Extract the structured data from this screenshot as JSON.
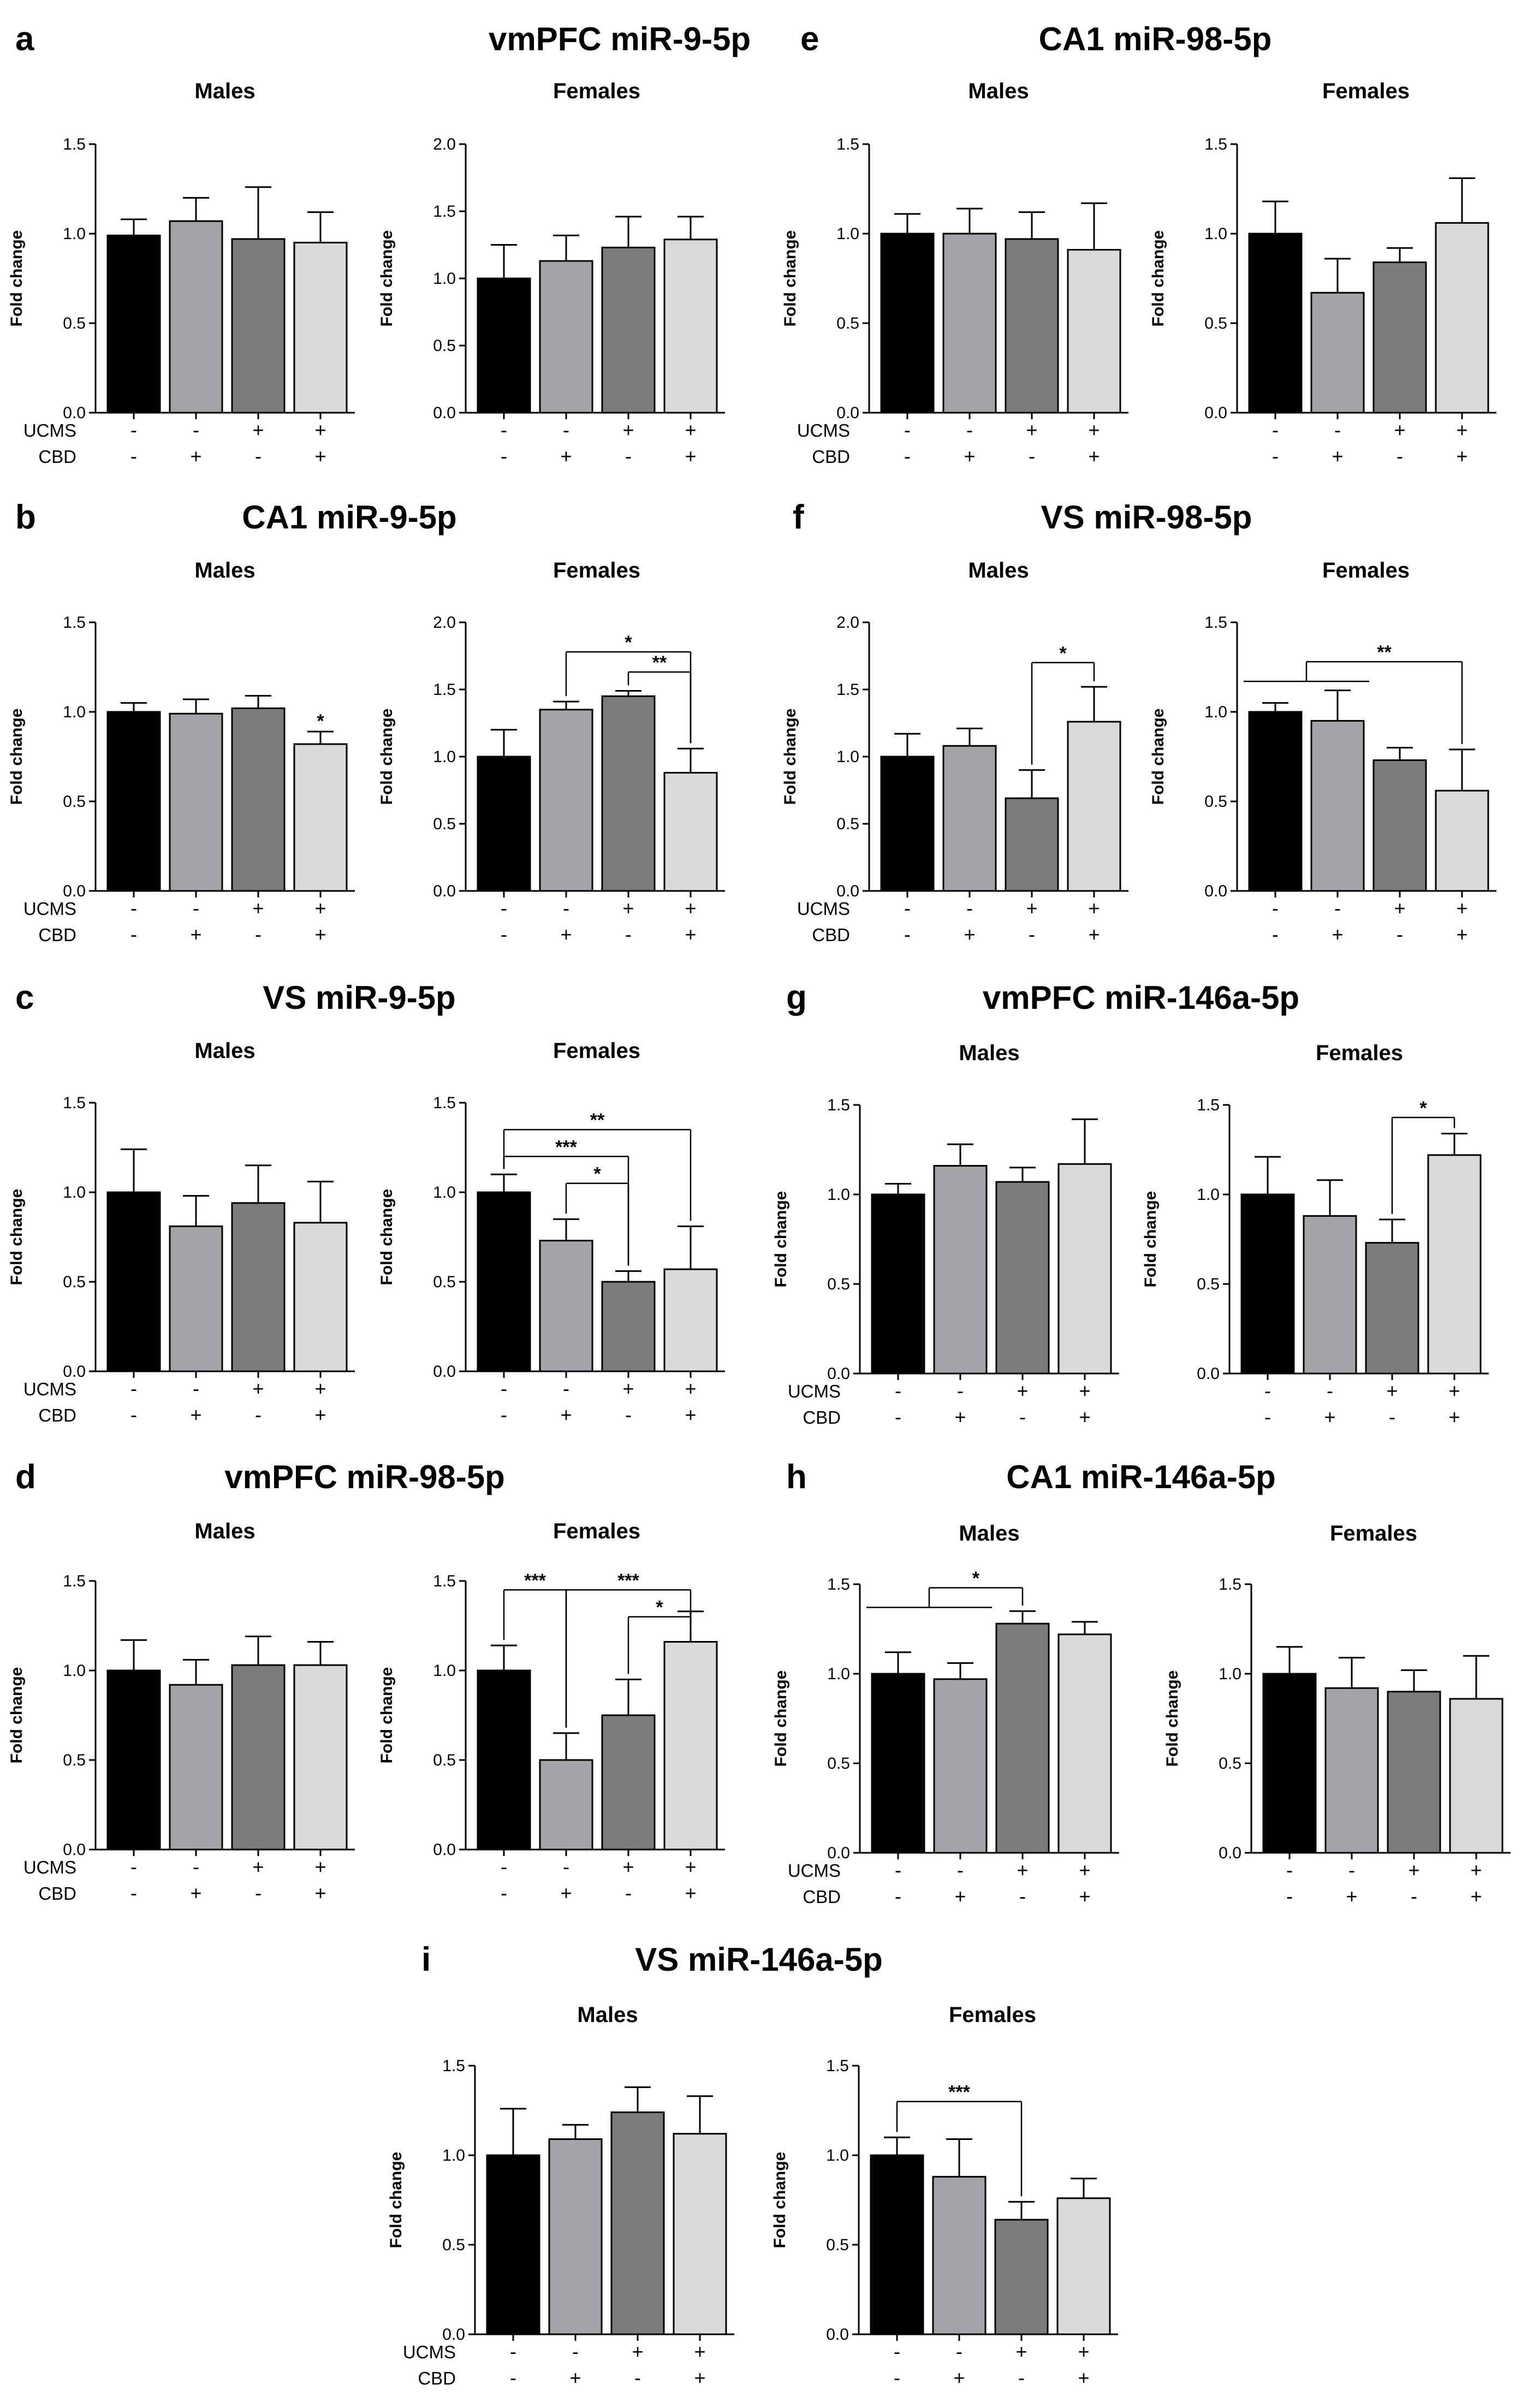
{
  "colors": [
    "#000000",
    "#a3a3a8",
    "#7c7c7c",
    "#d9d9d9"
  ],
  "row_labels": [
    "UCMS",
    "CBD"
  ],
  "y_axis_label": "Fold change",
  "chart_data": [
    {
      "letter": "a",
      "title": "vmPFC miR-9-5p",
      "type": "bar",
      "ylabel": "Fold change",
      "subplots": [
        {
          "title": "Males",
          "ylim": [
            0,
            1.5
          ],
          "ticks": [
            "0.0",
            "0.5",
            "1.0",
            "1.5"
          ],
          "values": [
            0.99,
            1.07,
            0.97,
            0.95
          ],
          "errors": [
            0.09,
            0.13,
            0.29,
            0.17
          ],
          "brackets": [],
          "stars": []
        },
        {
          "title": "Females",
          "ylim": [
            0,
            2.0
          ],
          "ticks": [
            "0.0",
            "0.5",
            "1.0",
            "1.5",
            "2.0"
          ],
          "values": [
            1.0,
            1.13,
            1.23,
            1.29
          ],
          "errors": [
            0.25,
            0.19,
            0.23,
            0.17
          ],
          "brackets": [],
          "stars": []
        }
      ]
    },
    {
      "letter": "e",
      "title": "CA1 miR-98-5p",
      "type": "bar",
      "ylabel": "Fold change",
      "subplots": [
        {
          "title": "Males",
          "ylim": [
            0,
            1.5
          ],
          "ticks": [
            "0.0",
            "0.5",
            "1.0",
            "1.5"
          ],
          "values": [
            1.0,
            1.0,
            0.97,
            0.91
          ],
          "errors": [
            0.11,
            0.14,
            0.15,
            0.26
          ],
          "brackets": [],
          "stars": []
        },
        {
          "title": "Females",
          "ylim": [
            0,
            1.5
          ],
          "ticks": [
            "0.0",
            "0.5",
            "1.0",
            "1.5"
          ],
          "values": [
            1.0,
            0.67,
            0.84,
            1.06
          ],
          "errors": [
            0.18,
            0.19,
            0.08,
            0.25
          ],
          "brackets": [],
          "stars": []
        }
      ]
    },
    {
      "letter": "b",
      "title": "CA1 miR-9-5p",
      "type": "bar",
      "ylabel": "Fold change",
      "subplots": [
        {
          "title": "Males",
          "ylim": [
            0,
            1.5
          ],
          "ticks": [
            "0.0",
            "0.5",
            "1.0",
            "1.5"
          ],
          "values": [
            1.0,
            0.99,
            1.02,
            0.82
          ],
          "errors": [
            0.05,
            0.08,
            0.07,
            0.07
          ],
          "brackets": [],
          "stars": [
            {
              "bar": 3,
              "label": "*"
            }
          ]
        },
        {
          "title": "Females",
          "ylim": [
            0,
            2.0
          ],
          "ticks": [
            "0.0",
            "0.5",
            "1.0",
            "1.5",
            "2.0"
          ],
          "values": [
            1.0,
            1.35,
            1.45,
            0.88
          ],
          "errors": [
            0.2,
            0.06,
            0.04,
            0.18
          ],
          "brackets": [
            {
              "from": [
                1
              ],
              "to": 3,
              "label": "*",
              "y": 1.78
            },
            {
              "from": [
                2
              ],
              "to": 3,
              "label": "**",
              "y": 1.63
            }
          ],
          "stars": []
        }
      ]
    },
    {
      "letter": "f",
      "title": "VS miR-98-5p",
      "type": "bar",
      "ylabel": "Fold change",
      "subplots": [
        {
          "title": "Males",
          "ylim": [
            0,
            2.0
          ],
          "ticks": [
            "0.0",
            "0.5",
            "1.0",
            "1.5",
            "2.0"
          ],
          "values": [
            1.0,
            1.08,
            0.69,
            1.26
          ],
          "errors": [
            0.17,
            0.13,
            0.21,
            0.26
          ],
          "brackets": [
            {
              "from": [
                2
              ],
              "to": 3,
              "label": "*",
              "y": 1.7
            }
          ],
          "stars": []
        },
        {
          "title": "Females",
          "ylim": [
            0,
            1.5
          ],
          "ticks": [
            "0.0",
            "0.5",
            "1.0",
            "1.5"
          ],
          "values": [
            1.0,
            0.95,
            0.73,
            0.56
          ],
          "errors": [
            0.05,
            0.17,
            0.07,
            0.23
          ],
          "brackets": [
            {
              "from": [
                0,
                1
              ],
              "to": 3,
              "label": "**",
              "y": 1.28
            }
          ],
          "stars": []
        }
      ]
    },
    {
      "letter": "c",
      "title": "VS miR-9-5p",
      "type": "bar",
      "ylabel": "Fold change",
      "subplots": [
        {
          "title": "Males",
          "ylim": [
            0,
            1.5
          ],
          "ticks": [
            "0.0",
            "0.5",
            "1.0",
            "1.5"
          ],
          "values": [
            1.0,
            0.81,
            0.94,
            0.83
          ],
          "errors": [
            0.24,
            0.17,
            0.21,
            0.23
          ],
          "brackets": [],
          "stars": []
        },
        {
          "title": "Females",
          "ylim": [
            0,
            1.5
          ],
          "ticks": [
            "0.0",
            "0.5",
            "1.0",
            "1.5"
          ],
          "values": [
            1.0,
            0.73,
            0.5,
            0.57
          ],
          "errors": [
            0.1,
            0.12,
            0.06,
            0.24
          ],
          "brackets": [
            {
              "from": [
                0
              ],
              "to": 3,
              "label": "**",
              "y": 1.35
            },
            {
              "from": [
                0
              ],
              "to": 2,
              "label": "***",
              "y": 1.2
            },
            {
              "from": [
                1
              ],
              "to": 2,
              "label": "*",
              "y": 1.05
            }
          ],
          "stars": []
        }
      ]
    },
    {
      "letter": "g",
      "title": "vmPFC miR-146a-5p",
      "type": "bar",
      "ylabel": "Fold change",
      "subplots": [
        {
          "title": "Males",
          "ylim": [
            0,
            1.5
          ],
          "ticks": [
            "0.0",
            "0.5",
            "1.0",
            "1.5"
          ],
          "values": [
            1.0,
            1.16,
            1.07,
            1.17
          ],
          "errors": [
            0.06,
            0.12,
            0.08,
            0.25
          ],
          "brackets": [],
          "stars": []
        },
        {
          "title": "Females",
          "ylim": [
            0,
            1.5
          ],
          "ticks": [
            "0.0",
            "0.5",
            "1.0",
            "1.5"
          ],
          "values": [
            1.0,
            0.88,
            0.73,
            1.22
          ],
          "errors": [
            0.21,
            0.2,
            0.13,
            0.12
          ],
          "brackets": [
            {
              "from": [
                2
              ],
              "to": 3,
              "label": "*",
              "y": 1.43
            }
          ],
          "stars": []
        }
      ]
    },
    {
      "letter": "d",
      "title": "vmPFC miR-98-5p",
      "type": "bar",
      "ylabel": "Fold change",
      "subplots": [
        {
          "title": "Males",
          "ylim": [
            0,
            1.5
          ],
          "ticks": [
            "0.0",
            "0.5",
            "1.0",
            "1.5"
          ],
          "values": [
            1.0,
            0.92,
            1.03,
            1.03
          ],
          "errors": [
            0.17,
            0.14,
            0.16,
            0.13
          ],
          "brackets": [],
          "stars": []
        },
        {
          "title": "Females",
          "ylim": [
            0,
            1.5
          ],
          "ticks": [
            "0.0",
            "0.5",
            "1.0",
            "1.5"
          ],
          "values": [
            1.0,
            0.5,
            0.75,
            1.16
          ],
          "errors": [
            0.14,
            0.15,
            0.2,
            0.17
          ],
          "brackets": [
            {
              "from": [
                0
              ],
              "to": 1,
              "label": "***",
              "y": 1.45
            },
            {
              "from": [
                1
              ],
              "to": 3,
              "label": "***",
              "y": 1.45
            },
            {
              "from": [
                2
              ],
              "to": 3,
              "label": "*",
              "y": 1.3
            }
          ],
          "stars": []
        }
      ]
    },
    {
      "letter": "h",
      "title": "CA1 miR-146a-5p",
      "type": "bar",
      "ylabel": "Fold change",
      "subplots": [
        {
          "title": "Males",
          "ylim": [
            0,
            1.5
          ],
          "ticks": [
            "0.0",
            "0.5",
            "1.0",
            "1.5"
          ],
          "values": [
            1.0,
            0.97,
            1.28,
            1.22
          ],
          "errors": [
            0.12,
            0.09,
            0.07,
            0.07
          ],
          "brackets": [
            {
              "from": [
                0,
                1
              ],
              "to": 2,
              "label": "*",
              "y": 1.48
            }
          ],
          "stars": []
        },
        {
          "title": "Females",
          "ylim": [
            0,
            1.5
          ],
          "ticks": [
            "0.0",
            "0.5",
            "1.0",
            "1.5"
          ],
          "values": [
            1.0,
            0.92,
            0.9,
            0.86
          ],
          "errors": [
            0.15,
            0.17,
            0.12,
            0.24
          ],
          "brackets": [],
          "stars": []
        }
      ]
    },
    {
      "letter": "i",
      "title": "VS miR-146a-5p",
      "type": "bar",
      "ylabel": "Fold change",
      "subplots": [
        {
          "title": "Males",
          "ylim": [
            0,
            1.5
          ],
          "ticks": [
            "0.0",
            "0.5",
            "1.0",
            "1.5"
          ],
          "values": [
            1.0,
            1.09,
            1.24,
            1.12
          ],
          "errors": [
            0.26,
            0.08,
            0.14,
            0.21
          ],
          "brackets": [],
          "stars": []
        },
        {
          "title": "Females",
          "ylim": [
            0,
            1.5
          ],
          "ticks": [
            "0.0",
            "0.5",
            "1.0",
            "1.5"
          ],
          "values": [
            1.0,
            0.88,
            0.64,
            0.76
          ],
          "errors": [
            0.1,
            0.21,
            0.1,
            0.11
          ],
          "brackets": [
            {
              "from": [
                0
              ],
              "to": 2,
              "label": "***",
              "y": 1.3
            }
          ],
          "stars": []
        }
      ]
    }
  ]
}
